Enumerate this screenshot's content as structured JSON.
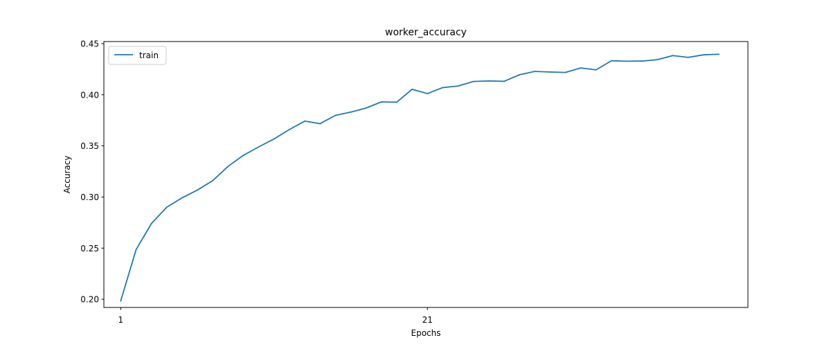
{
  "chart_data": {
    "type": "line",
    "title": "worker_accuracy",
    "xlabel": "Epochs",
    "ylabel": "Accuracy",
    "xlim": [
      -0.1,
      41.9
    ],
    "ylim": [
      0.192,
      0.452
    ],
    "x_ticks": [
      1,
      21
    ],
    "y_ticks": [
      0.2,
      0.25,
      0.3,
      0.35,
      0.4,
      0.45
    ],
    "y_tick_labels": [
      "0.20",
      "0.25",
      "0.30",
      "0.35",
      "0.40",
      "0.45"
    ],
    "legend": {
      "location": "top-left",
      "entries": [
        "train"
      ]
    },
    "grid": false,
    "series": [
      {
        "name": "train",
        "color": "#1f77b4",
        "x": [
          1,
          2,
          3,
          4,
          5,
          6,
          7,
          8,
          9,
          10,
          11,
          12,
          13,
          14,
          15,
          16,
          17,
          18,
          19,
          20,
          21,
          22,
          23,
          24,
          25,
          26,
          27,
          28,
          29,
          30,
          31,
          32,
          33,
          34,
          35,
          36,
          37,
          38,
          39,
          40
        ],
        "values": [
          0.1985,
          0.2485,
          0.274,
          0.29,
          0.2992,
          0.3068,
          0.316,
          0.33,
          0.3408,
          0.349,
          0.3568,
          0.366,
          0.3742,
          0.3717,
          0.3798,
          0.383,
          0.387,
          0.393,
          0.3927,
          0.4053,
          0.4011,
          0.407,
          0.4085,
          0.413,
          0.4135,
          0.4131,
          0.4195,
          0.4228,
          0.4222,
          0.4218,
          0.4262,
          0.4243,
          0.4332,
          0.4328,
          0.4329,
          0.4343,
          0.4383,
          0.4365,
          0.439,
          0.4396
        ]
      }
    ]
  }
}
